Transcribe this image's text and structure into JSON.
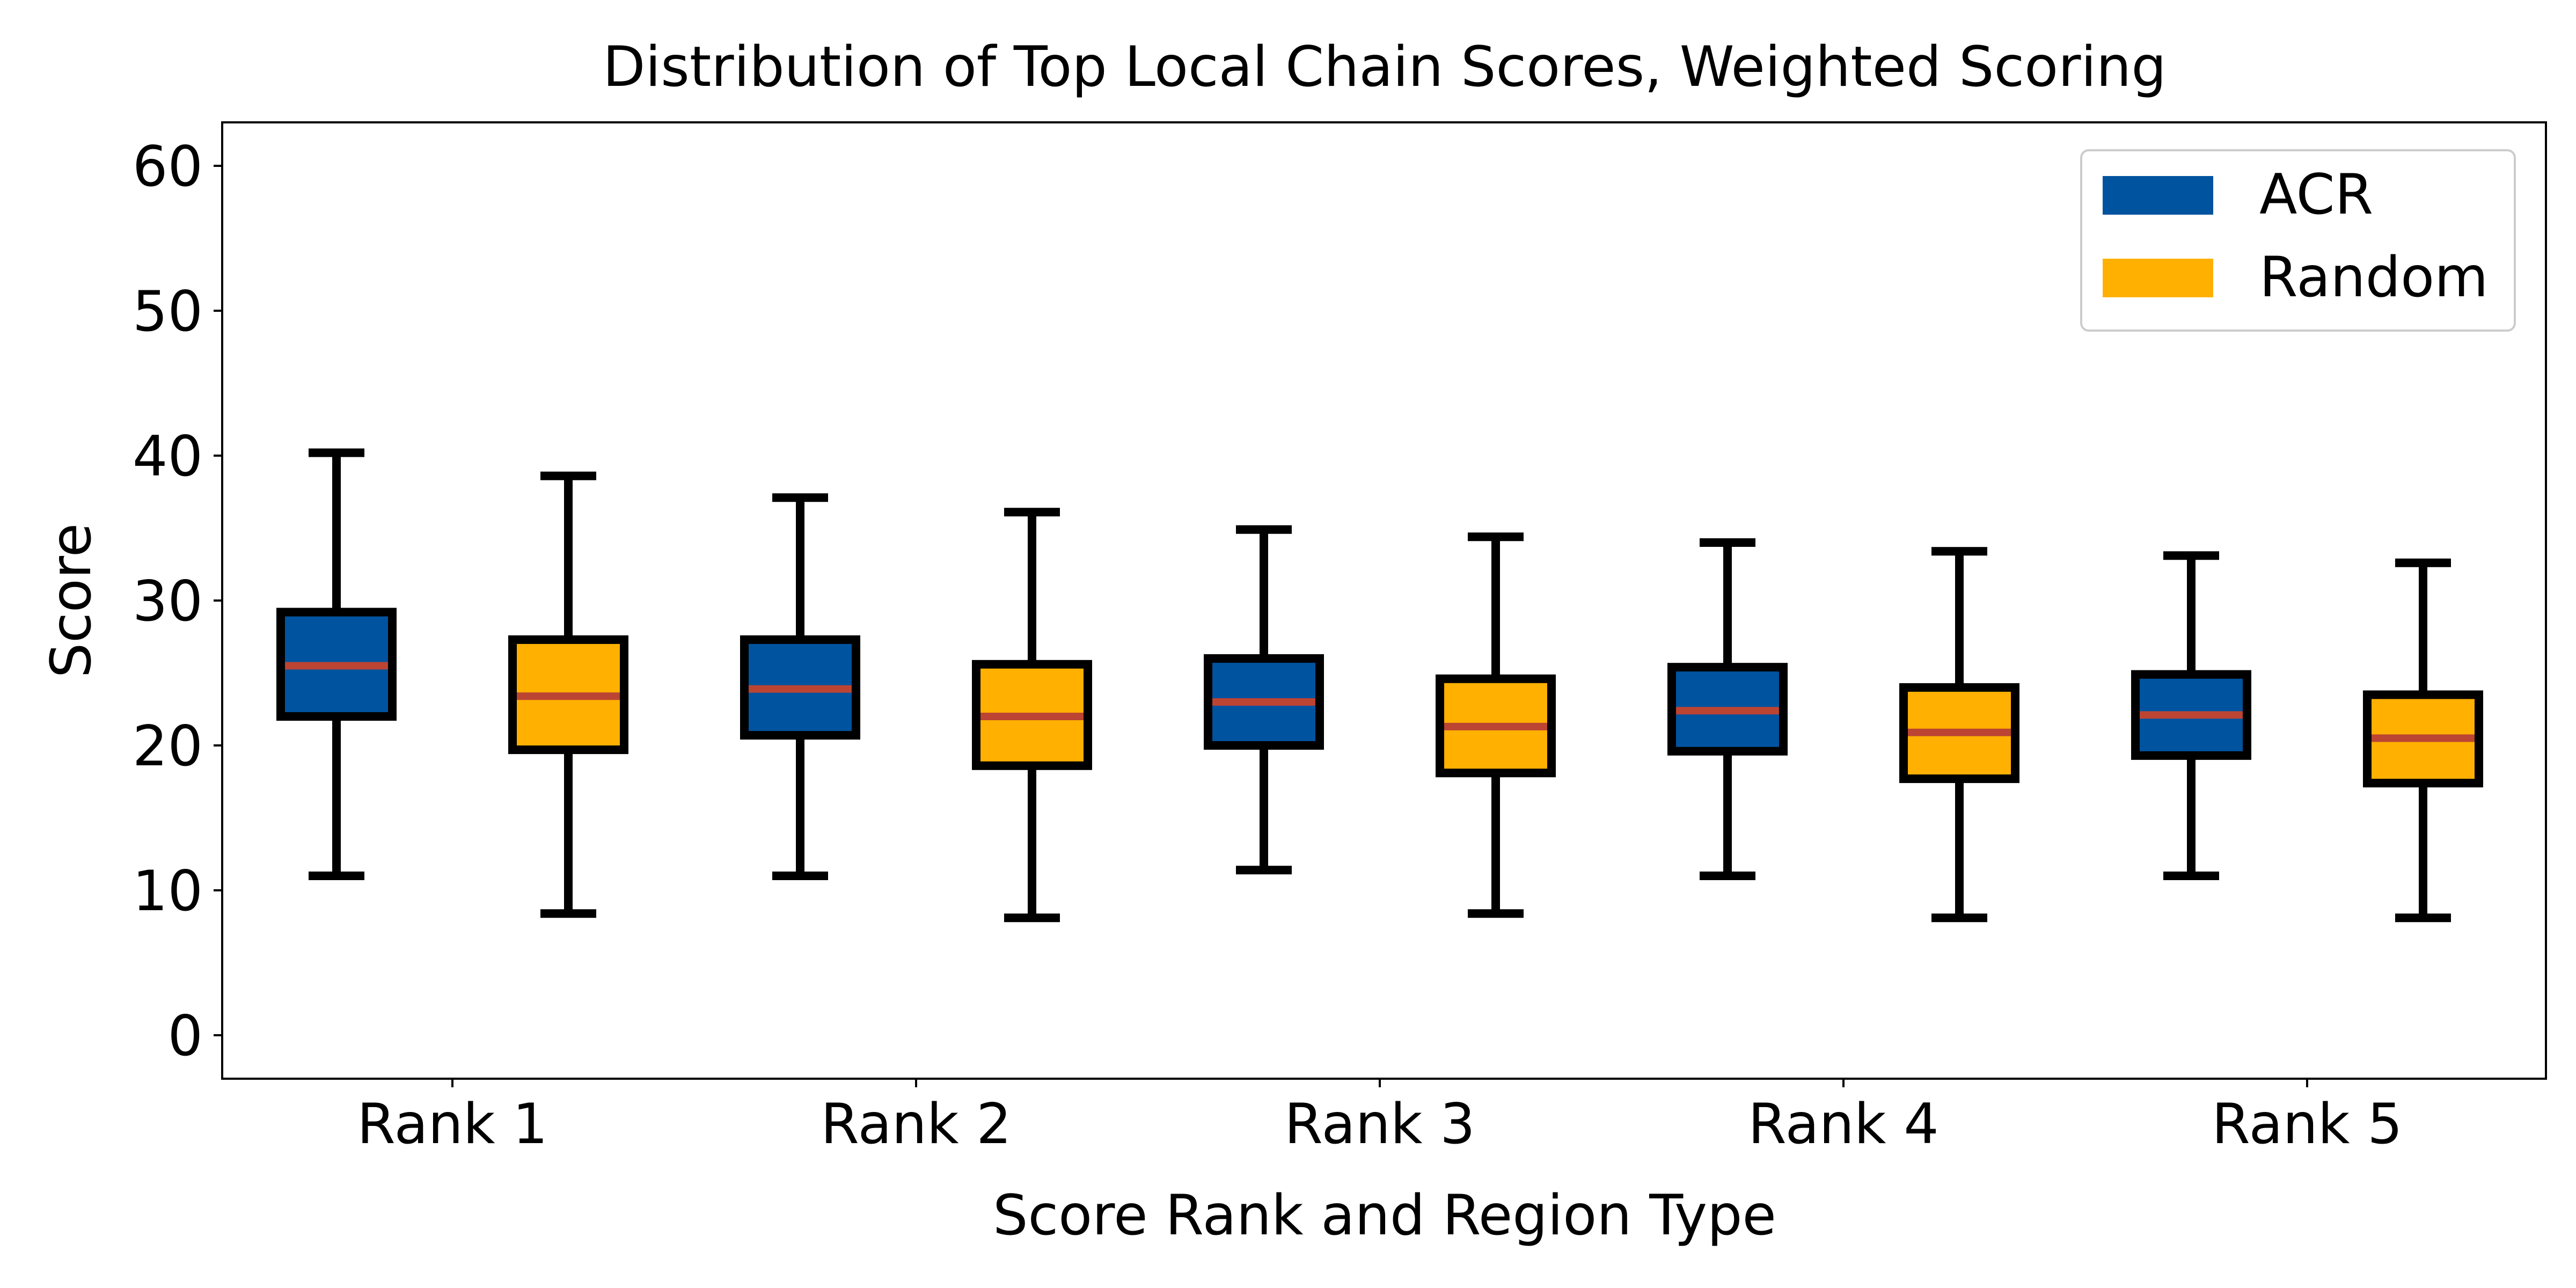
{
  "chart_data": {
    "type": "box",
    "title": "Distribution of Top Local Chain Scores, Weighted Scoring",
    "xlabel": "Score Rank and Region Type",
    "ylabel": "Score",
    "ylim": [
      -3,
      63
    ],
    "yticks": [
      0,
      10,
      20,
      30,
      40,
      50,
      60
    ],
    "categories": [
      "Rank 1",
      "Rank 2",
      "Rank 3",
      "Rank 4",
      "Rank 5"
    ],
    "grid": false,
    "legend_position": "top-right",
    "series": [
      {
        "name": "ACR",
        "color": "#00539f",
        "boxes": [
          {
            "whisker_low": 11.0,
            "q1": 22.0,
            "median": 25.5,
            "q3": 29.2,
            "whisker_high": 40.2
          },
          {
            "whisker_low": 11.0,
            "q1": 20.7,
            "median": 23.9,
            "q3": 27.3,
            "whisker_high": 37.1
          },
          {
            "whisker_low": 11.4,
            "q1": 20.0,
            "median": 23.0,
            "q3": 26.0,
            "whisker_high": 34.9
          },
          {
            "whisker_low": 11.0,
            "q1": 19.6,
            "median": 22.4,
            "q3": 25.4,
            "whisker_high": 34.0
          },
          {
            "whisker_low": 11.0,
            "q1": 19.3,
            "median": 22.1,
            "q3": 24.9,
            "whisker_high": 33.1
          }
        ]
      },
      {
        "name": "Random",
        "color": "#ffb000",
        "boxes": [
          {
            "whisker_low": 8.4,
            "q1": 19.7,
            "median": 23.4,
            "q3": 27.3,
            "whisker_high": 38.6
          },
          {
            "whisker_low": 8.1,
            "q1": 18.6,
            "median": 22.0,
            "q3": 25.6,
            "whisker_high": 36.1
          },
          {
            "whisker_low": 8.4,
            "q1": 18.1,
            "median": 21.3,
            "q3": 24.6,
            "whisker_high": 34.4
          },
          {
            "whisker_low": 8.1,
            "q1": 17.7,
            "median": 20.9,
            "q3": 24.0,
            "whisker_high": 33.4
          },
          {
            "whisker_low": 8.1,
            "q1": 17.4,
            "median": 20.5,
            "q3": 23.5,
            "whisker_high": 32.6
          }
        ]
      }
    ],
    "median_color": "#bb4433"
  }
}
